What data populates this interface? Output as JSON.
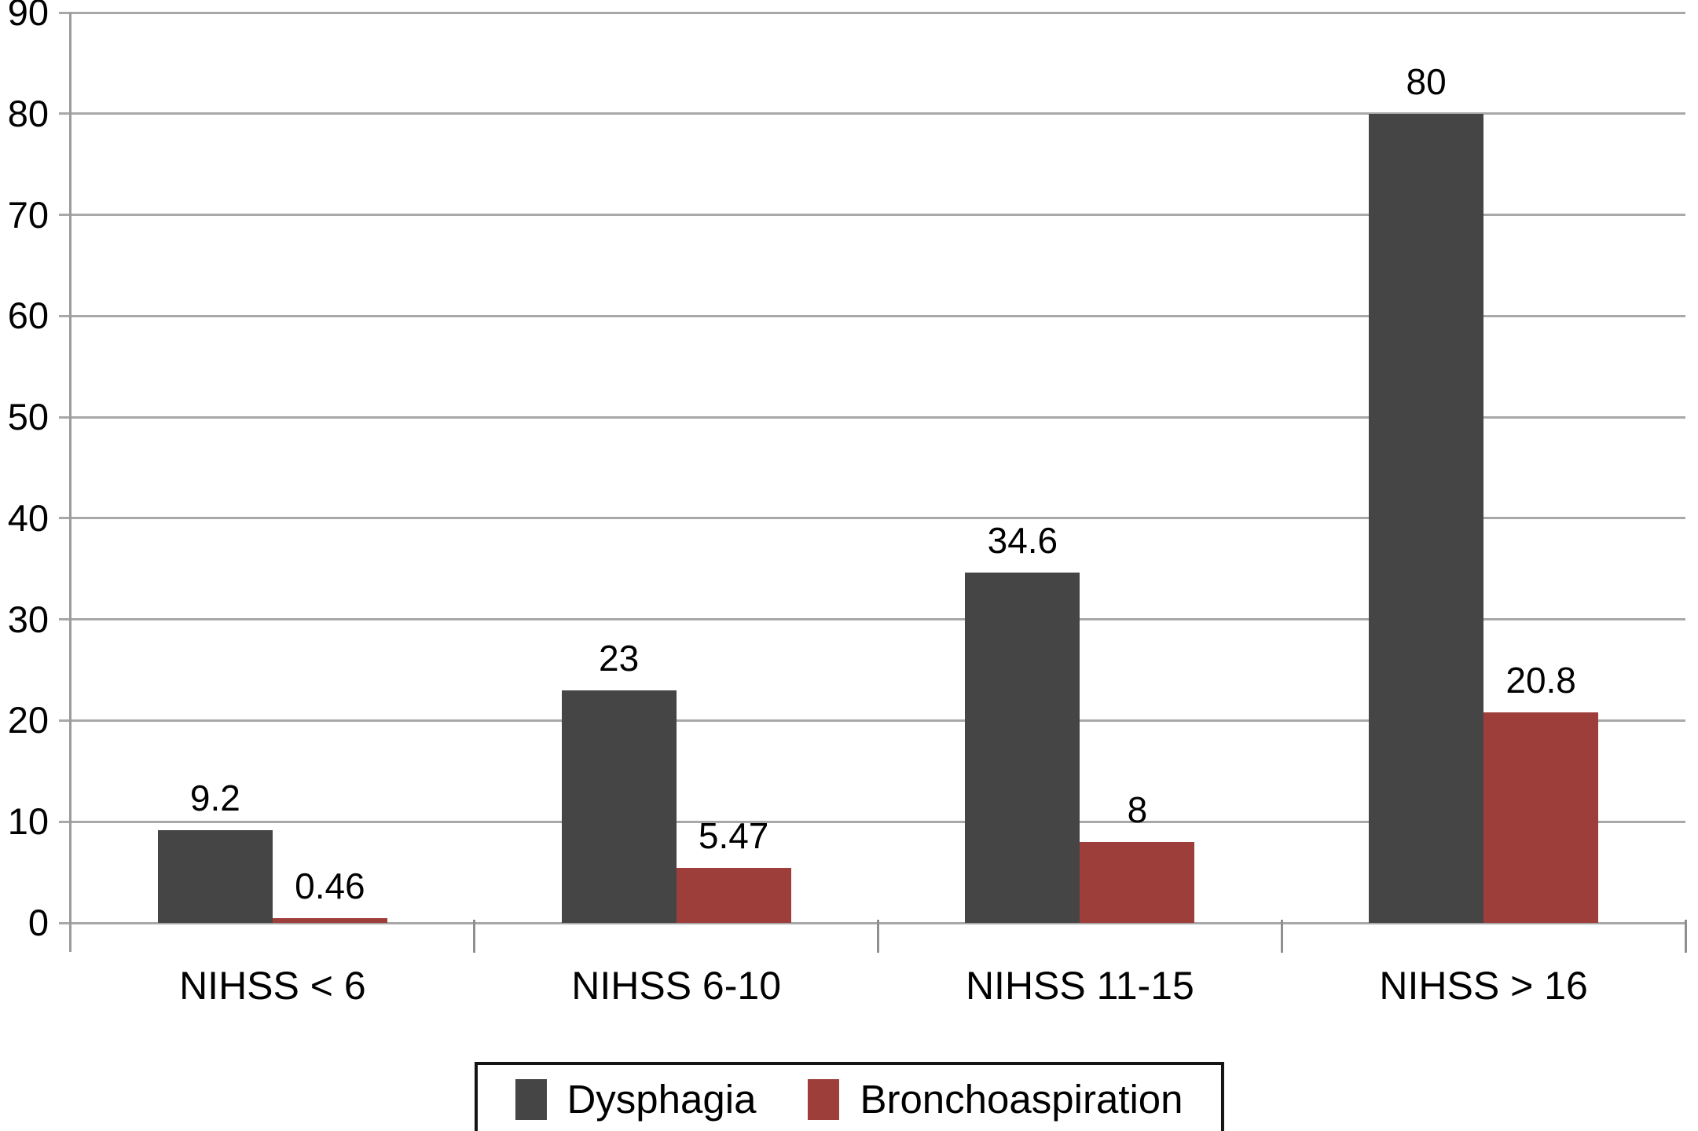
{
  "figure": {
    "background": "#FFFFFF",
    "text_color": "#000000"
  },
  "chart_data": {
    "type": "bar",
    "title": "",
    "xlabel": "",
    "ylabel": "",
    "categories": [
      "NIHSS < 6",
      "NIHSS 6-10",
      "NIHSS 11-15",
      "NIHSS > 16"
    ],
    "series": [
      {
        "name": "Dysphagia",
        "color": "#454545",
        "values": [
          9.2,
          23,
          34.6,
          80
        ],
        "data_labels": [
          "9.2",
          "23",
          "34.6",
          "80"
        ]
      },
      {
        "name": "Bronchoaspiration",
        "color": "#9E3E3B",
        "values": [
          0.46,
          5.47,
          8,
          20.8
        ],
        "data_labels": [
          "0.46",
          "5.47",
          "8",
          "20.8"
        ]
      }
    ],
    "ylim": [
      0,
      90
    ],
    "yticks": [
      0,
      10,
      20,
      30,
      40,
      50,
      60,
      70,
      80,
      90
    ],
    "grid": true,
    "grid_color": "#A8A8A8",
    "axis_color": "#9B9B9B",
    "x_tick_color": "#8F8F8F",
    "legend_position": "bottom",
    "legend_border_color": "#141414"
  }
}
